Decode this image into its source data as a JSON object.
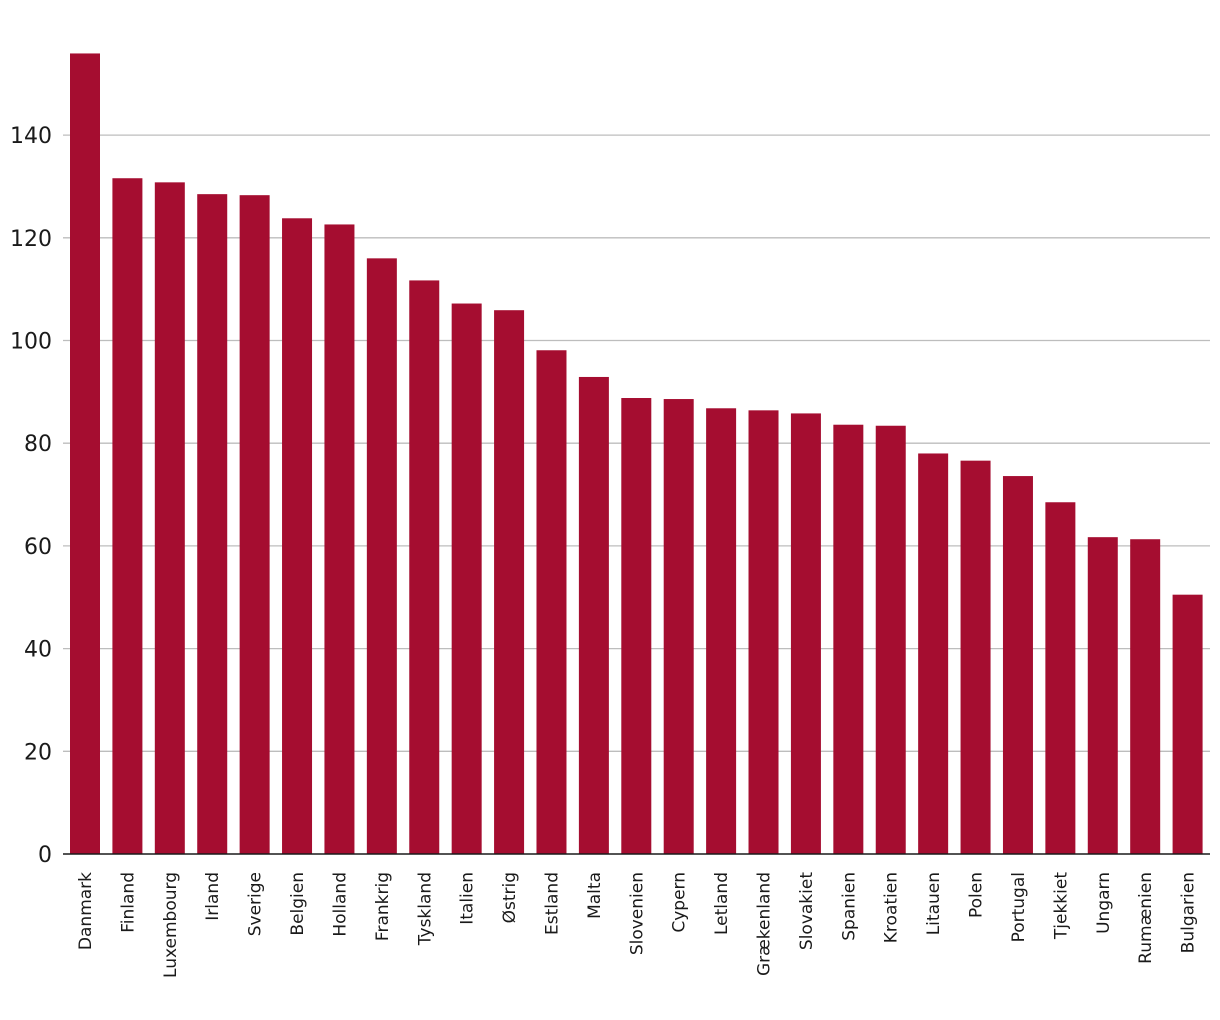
{
  "chart_data": {
    "type": "bar",
    "title": "",
    "xlabel": "",
    "ylabel": "",
    "ylim": [
      0,
      160
    ],
    "yticks": [
      0,
      20,
      40,
      60,
      80,
      100,
      120,
      140
    ],
    "grid": true,
    "bar_color": "#a50d30",
    "categories": [
      "Danmark",
      "Finland",
      "Luxembourg",
      "Irland",
      "Sverige",
      "Belgien",
      "Holland",
      "Frankrig",
      "Tyskland",
      "Italien",
      "Østrig",
      "Estland",
      "Malta",
      "Slovenien",
      "Cypern",
      "Letland",
      "Grækenland",
      "Slovakiet",
      "Spanien",
      "Kroatien",
      "Litauen",
      "Polen",
      "Portugal",
      "Tjekkiet",
      "Ungarn",
      "Rumænien",
      "Bulgarien"
    ],
    "values": [
      155.9,
      131.6,
      130.8,
      128.5,
      128.3,
      123.8,
      122.6,
      116.0,
      111.7,
      107.2,
      105.9,
      98.1,
      92.9,
      88.8,
      88.6,
      86.8,
      86.4,
      85.8,
      83.6,
      83.4,
      78.0,
      76.6,
      73.6,
      68.5,
      61.7,
      61.3,
      50.5
    ]
  }
}
